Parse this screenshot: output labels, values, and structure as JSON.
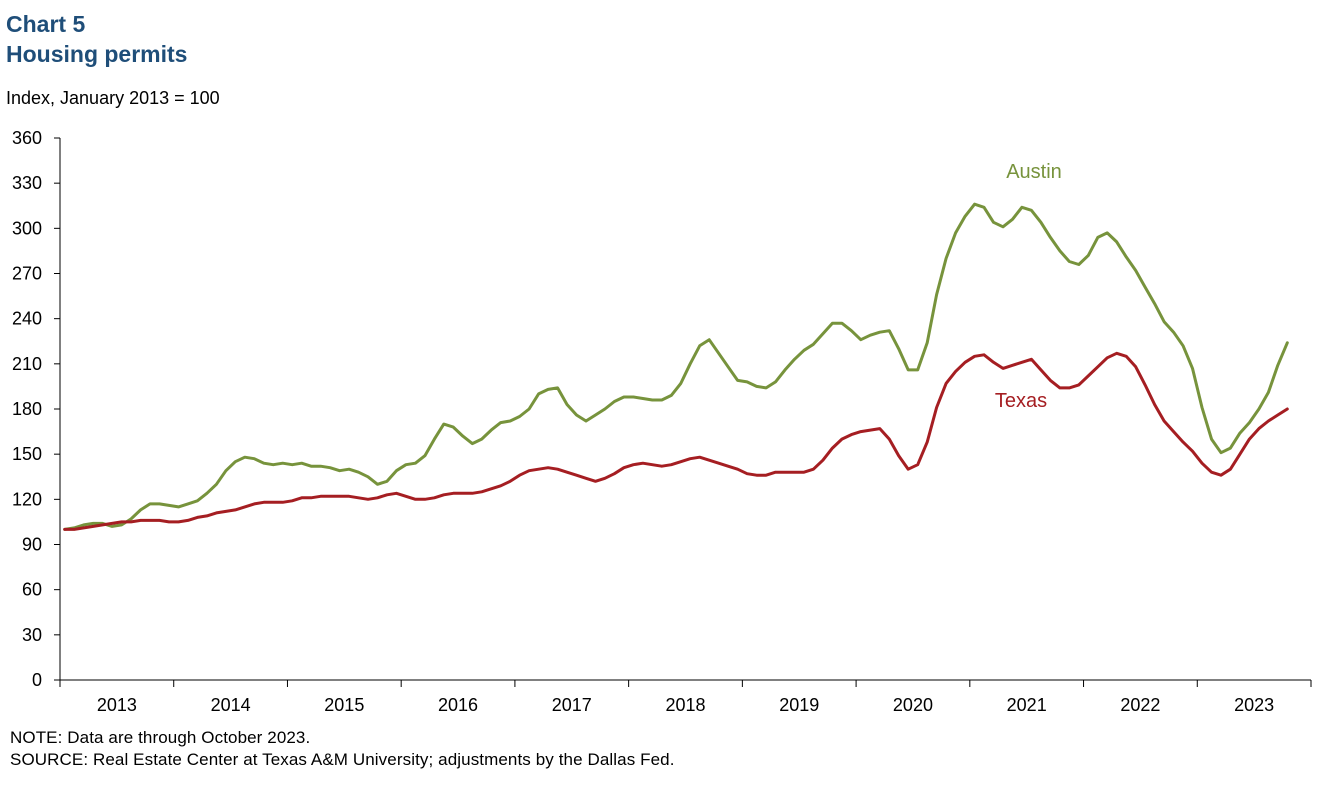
{
  "chart_data": {
    "type": "line",
    "title": "Chart 5",
    "subtitle": "Housing permits",
    "ylabel": "Index, January 2013 = 100",
    "ylim": [
      0,
      360
    ],
    "yticks": [
      0,
      30,
      60,
      90,
      120,
      150,
      180,
      210,
      240,
      270,
      300,
      330,
      360
    ],
    "xticks": [
      "2013",
      "2014",
      "2015",
      "2016",
      "2017",
      "2018",
      "2019",
      "2020",
      "2021",
      "2022",
      "2023"
    ],
    "x_start": "January 2013",
    "x_end": "October 2023",
    "grid": false,
    "legend": "inline labels",
    "series": [
      {
        "name": "Austin",
        "color": "#77933C",
        "values": [
          100,
          101,
          103,
          104,
          104,
          102,
          103,
          107,
          113,
          117,
          117,
          116,
          115,
          117,
          119,
          124,
          130,
          139,
          145,
          148,
          147,
          144,
          143,
          144,
          143,
          144,
          142,
          142,
          141,
          139,
          140,
          138,
          135,
          130,
          132,
          139,
          143,
          144,
          149,
          160,
          170,
          168,
          162,
          157,
          160,
          166,
          171,
          172,
          175,
          180,
          190,
          193,
          194,
          183,
          176,
          172,
          176,
          180,
          185,
          188,
          188,
          187,
          186,
          186,
          189,
          197,
          210,
          222,
          226,
          217,
          208,
          199,
          198,
          195,
          194,
          198,
          206,
          213,
          219,
          223,
          230,
          237,
          237,
          232,
          226,
          229,
          231,
          232,
          220,
          206,
          206,
          224,
          256,
          280,
          297,
          308,
          316,
          314,
          304,
          301,
          306,
          314,
          312,
          304,
          294,
          285,
          278,
          276,
          282,
          294,
          297,
          291,
          281,
          272,
          261,
          250,
          238,
          231,
          222,
          207,
          181,
          160,
          151,
          154,
          164,
          171,
          180,
          191,
          209,
          224
        ]
      },
      {
        "name": "Texas",
        "color": "#A51E22",
        "values": [
          100,
          100,
          101,
          102,
          103,
          104,
          105,
          105,
          106,
          106,
          106,
          105,
          105,
          106,
          108,
          109,
          111,
          112,
          113,
          115,
          117,
          118,
          118,
          118,
          119,
          121,
          121,
          122,
          122,
          122,
          122,
          121,
          120,
          121,
          123,
          124,
          122,
          120,
          120,
          121,
          123,
          124,
          124,
          124,
          125,
          127,
          129,
          132,
          136,
          139,
          140,
          141,
          140,
          138,
          136,
          134,
          132,
          134,
          137,
          141,
          143,
          144,
          143,
          142,
          143,
          145,
          147,
          148,
          146,
          144,
          142,
          140,
          137,
          136,
          136,
          138,
          138,
          138,
          138,
          140,
          146,
          154,
          160,
          163,
          165,
          166,
          167,
          160,
          149,
          140,
          143,
          158,
          181,
          197,
          205,
          211,
          215,
          216,
          211,
          207,
          209,
          211,
          213,
          206,
          199,
          194,
          194,
          196,
          202,
          208,
          214,
          217,
          215,
          208,
          196,
          183,
          172,
          165,
          158,
          152,
          144,
          138,
          136,
          140,
          150,
          160,
          167,
          172,
          176,
          180
        ]
      }
    ]
  },
  "notes": {
    "note": "NOTE: Data are through October 2023.",
    "source": "SOURCE: Real Estate Center at Texas A&M University; adjustments by the Dallas Fed."
  }
}
